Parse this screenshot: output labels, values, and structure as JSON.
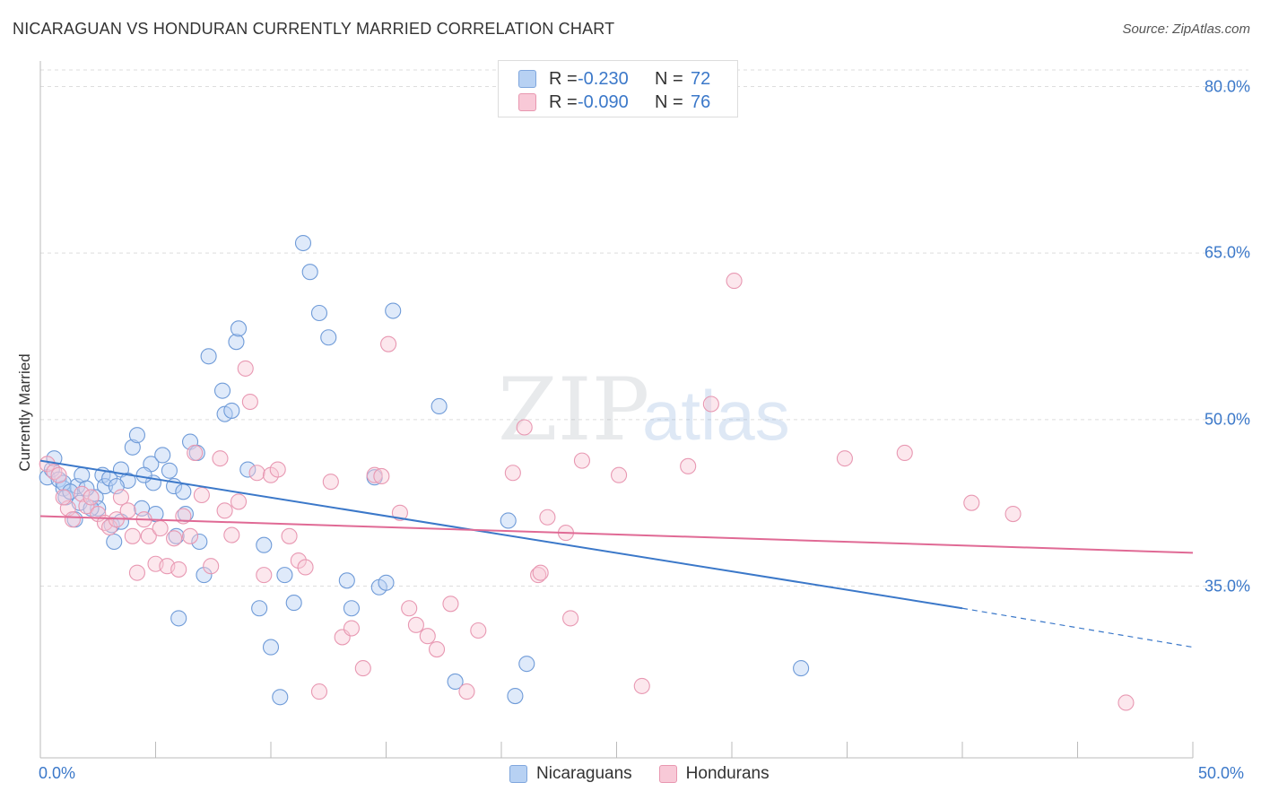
{
  "title": "NICARAGUAN VS HONDURAN CURRENTLY MARRIED CORRELATION CHART",
  "source": "Source: ZipAtlas.com",
  "watermark": {
    "zip": "ZIP",
    "atlas": "atlas"
  },
  "colors": {
    "blue": "#3b78c9",
    "blue_fill": "#b7d1f3",
    "pink": "#e06a95",
    "pink_fill": "#f8c9d7",
    "grid": "#dddddd"
  },
  "legend_top": {
    "rows": [
      {
        "key": "R =",
        "r": "-0.230",
        "n_key": "N =",
        "n": "72"
      },
      {
        "key": "R =",
        "r": "-0.090",
        "n_key": "N =",
        "n": "76"
      }
    ]
  },
  "legend_bottom": [
    "Nicaraguans",
    "Hondurans"
  ],
  "chart_data": {
    "type": "scatter",
    "title": "NICARAGUAN VS HONDURAN CURRENTLY MARRIED CORRELATION CHART",
    "xlabel": "",
    "ylabel": "Currently Married",
    "xlim": [
      0,
      50
    ],
    "ylim": [
      20,
      82
    ],
    "x_tick_labels": [
      "0.0%",
      "50.0%"
    ],
    "y_ticks": [
      35,
      50,
      65,
      80
    ],
    "y_tick_labels": [
      "35.0%",
      "50.0%",
      "65.0%",
      "80.0%"
    ],
    "grid": true,
    "series": [
      {
        "name": "Nicaraguans",
        "r": -0.23,
        "n": 72,
        "trend": {
          "x0": 0,
          "y0": 46.3,
          "x1": 40,
          "y1": 33.0,
          "dash_to_x": 50,
          "dash_y": 29.5
        },
        "points": [
          [
            0.3,
            44.8
          ],
          [
            0.5,
            45.5
          ],
          [
            0.6,
            46.5
          ],
          [
            0.8,
            44.6
          ],
          [
            1.0,
            43.8
          ],
          [
            1.1,
            43.0
          ],
          [
            1.5,
            41.0
          ],
          [
            1.6,
            44.0
          ],
          [
            1.7,
            42.5
          ],
          [
            1.8,
            45.0
          ],
          [
            2.4,
            43.0
          ],
          [
            2.5,
            42.0
          ],
          [
            2.7,
            45.0
          ],
          [
            2.8,
            44.0
          ],
          [
            3.0,
            44.7
          ],
          [
            3.1,
            40.5
          ],
          [
            3.2,
            39.0
          ],
          [
            3.5,
            40.8
          ],
          [
            3.5,
            45.5
          ],
          [
            3.8,
            44.5
          ],
          [
            4.0,
            47.5
          ],
          [
            4.2,
            48.6
          ],
          [
            4.4,
            42.0
          ],
          [
            4.8,
            46.0
          ],
          [
            4.9,
            44.3
          ],
          [
            5.0,
            41.5
          ],
          [
            5.3,
            46.8
          ],
          [
            5.6,
            45.4
          ],
          [
            5.9,
            39.5
          ],
          [
            6.0,
            32.1
          ],
          [
            6.3,
            41.5
          ],
          [
            6.5,
            48.0
          ],
          [
            6.8,
            47.0
          ],
          [
            6.9,
            39.0
          ],
          [
            7.1,
            36.0
          ],
          [
            7.3,
            55.7
          ],
          [
            7.9,
            52.6
          ],
          [
            8.0,
            50.5
          ],
          [
            8.3,
            50.8
          ],
          [
            8.5,
            57.0
          ],
          [
            8.6,
            58.2
          ],
          [
            9.0,
            45.5
          ],
          [
            9.5,
            33.0
          ],
          [
            9.7,
            38.7
          ],
          [
            10.0,
            29.5
          ],
          [
            10.4,
            25.0
          ],
          [
            10.6,
            36.0
          ],
          [
            11.0,
            33.5
          ],
          [
            11.4,
            65.9
          ],
          [
            11.7,
            63.3
          ],
          [
            12.1,
            59.6
          ],
          [
            12.5,
            57.4
          ],
          [
            13.3,
            35.5
          ],
          [
            13.5,
            33.0
          ],
          [
            14.5,
            44.8
          ],
          [
            14.7,
            34.9
          ],
          [
            15.0,
            35.3
          ],
          [
            15.3,
            59.8
          ],
          [
            17.3,
            51.2
          ],
          [
            18.0,
            26.4
          ],
          [
            20.3,
            40.9
          ],
          [
            20.6,
            25.1
          ],
          [
            21.1,
            28.0
          ],
          [
            33.0,
            27.6
          ],
          [
            1.0,
            44.3
          ],
          [
            1.3,
            43.5
          ],
          [
            2.0,
            43.8
          ],
          [
            2.2,
            42.0
          ],
          [
            3.3,
            44.0
          ],
          [
            5.8,
            44.0
          ],
          [
            4.5,
            45.0
          ],
          [
            6.2,
            43.5
          ]
        ]
      },
      {
        "name": "Hondurans",
        "r": -0.09,
        "n": 76,
        "trend": {
          "x0": 0,
          "y0": 41.3,
          "x1": 50,
          "y1": 38.0
        },
        "points": [
          [
            0.3,
            46.0
          ],
          [
            0.6,
            45.3
          ],
          [
            0.8,
            45.0
          ],
          [
            1.2,
            42.0
          ],
          [
            1.4,
            41.0
          ],
          [
            1.8,
            43.3
          ],
          [
            2.0,
            42.2
          ],
          [
            2.2,
            43.0
          ],
          [
            2.5,
            41.5
          ],
          [
            2.8,
            40.7
          ],
          [
            3.0,
            40.3
          ],
          [
            3.3,
            41.0
          ],
          [
            3.5,
            43.0
          ],
          [
            3.8,
            41.8
          ],
          [
            4.0,
            39.5
          ],
          [
            4.2,
            36.2
          ],
          [
            4.5,
            41.0
          ],
          [
            4.7,
            39.5
          ],
          [
            5.0,
            37.0
          ],
          [
            5.2,
            40.2
          ],
          [
            5.5,
            36.8
          ],
          [
            5.8,
            39.3
          ],
          [
            6.0,
            36.5
          ],
          [
            6.2,
            41.3
          ],
          [
            6.5,
            39.5
          ],
          [
            6.7,
            47.0
          ],
          [
            7.0,
            43.2
          ],
          [
            7.4,
            36.8
          ],
          [
            7.8,
            46.5
          ],
          [
            8.0,
            41.8
          ],
          [
            8.3,
            39.6
          ],
          [
            8.6,
            42.6
          ],
          [
            8.9,
            54.6
          ],
          [
            9.1,
            51.6
          ],
          [
            9.4,
            45.2
          ],
          [
            9.7,
            36.0
          ],
          [
            10.0,
            45.0
          ],
          [
            10.3,
            45.5
          ],
          [
            10.8,
            39.5
          ],
          [
            11.2,
            37.3
          ],
          [
            11.5,
            36.7
          ],
          [
            12.1,
            25.5
          ],
          [
            12.6,
            44.4
          ],
          [
            13.1,
            30.4
          ],
          [
            13.5,
            31.2
          ],
          [
            14.0,
            27.6
          ],
          [
            14.5,
            45.0
          ],
          [
            14.8,
            44.9
          ],
          [
            15.1,
            56.8
          ],
          [
            15.6,
            41.6
          ],
          [
            16.0,
            33.0
          ],
          [
            16.3,
            31.5
          ],
          [
            16.8,
            30.5
          ],
          [
            17.2,
            29.3
          ],
          [
            17.8,
            33.4
          ],
          [
            18.5,
            25.5
          ],
          [
            19.0,
            31.0
          ],
          [
            20.5,
            45.2
          ],
          [
            21.0,
            49.3
          ],
          [
            21.6,
            36.0
          ],
          [
            21.7,
            36.2
          ],
          [
            22.0,
            41.2
          ],
          [
            22.8,
            39.8
          ],
          [
            23.0,
            32.1
          ],
          [
            23.5,
            46.3
          ],
          [
            25.1,
            45.0
          ],
          [
            26.1,
            26.0
          ],
          [
            28.1,
            45.8
          ],
          [
            29.1,
            51.4
          ],
          [
            30.1,
            62.5
          ],
          [
            34.9,
            46.5
          ],
          [
            37.5,
            47.0
          ],
          [
            40.4,
            42.5
          ],
          [
            42.2,
            41.5
          ],
          [
            47.1,
            24.5
          ],
          [
            1.0,
            43.0
          ]
        ]
      }
    ]
  }
}
